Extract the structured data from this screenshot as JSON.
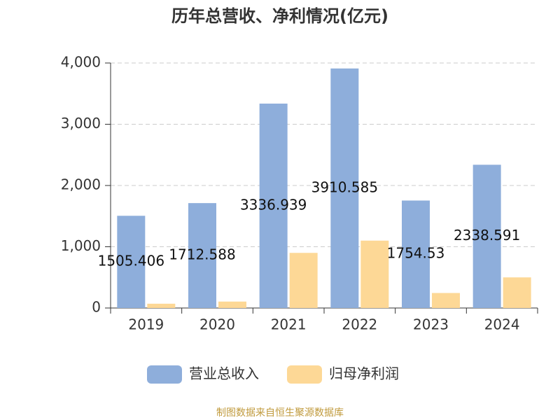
{
  "chart_data": {
    "type": "bar",
    "title": "历年总营收、净利情况(亿元)",
    "categories": [
      "2019",
      "2020",
      "2021",
      "2022",
      "2023",
      "2024"
    ],
    "series": [
      {
        "name": "营业总收入",
        "color": "#8eaedb",
        "values": [
          1505.406,
          1712.588,
          3336.939,
          3910.585,
          1754.53,
          2338.591
        ]
      },
      {
        "name": "归母净利润",
        "color": "#fdd896",
        "values": [
          70,
          105,
          900,
          1100,
          245,
          500
        ]
      }
    ],
    "ylim": [
      0,
      4000
    ],
    "yticks": [
      0,
      {
        "value": 1000,
        "label": "1,000"
      },
      {
        "value": 2000,
        "label": "2,000"
      },
      {
        "value": 3000,
        "label": "3,000"
      },
      {
        "value": 4000,
        "label": "4,000"
      }
    ],
    "grid": true,
    "legend": "bottom",
    "source": "制图数据来自恒生聚源数据库"
  }
}
